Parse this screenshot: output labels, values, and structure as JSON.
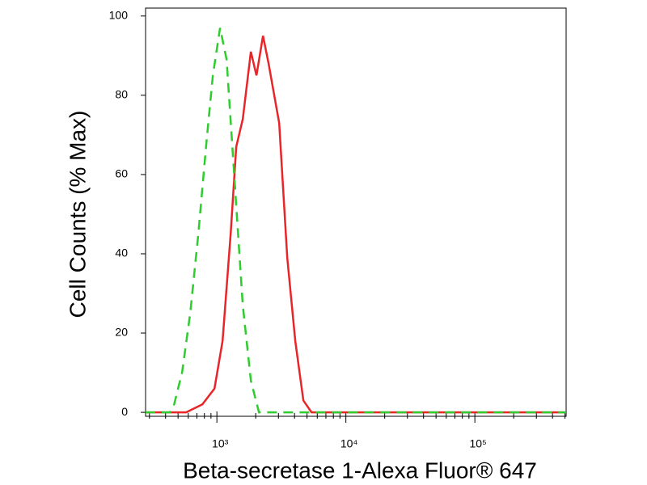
{
  "chart_data": {
    "type": "line",
    "xlabel": "Beta-secretase 1-Alexa Fluor® 647",
    "ylabel": "Cell Counts (% Max)",
    "log_x": true,
    "xlim": [
      280,
      510000
    ],
    "ylim": [
      -1,
      102
    ],
    "xticks": [
      {
        "value": 1000,
        "label": "10³"
      },
      {
        "value": 10000,
        "label": "10⁴"
      },
      {
        "value": 100000,
        "label": "10⁵"
      }
    ],
    "xminor_ticks": [
      300,
      400,
      500,
      600,
      700,
      800,
      900,
      2000,
      3000,
      4000,
      5000,
      6000,
      7000,
      8000,
      9000,
      20000,
      30000,
      40000,
      50000,
      60000,
      70000,
      80000,
      90000,
      200000,
      300000,
      400000,
      500000
    ],
    "yticks": [
      0,
      20,
      40,
      60,
      80,
      100
    ],
    "series": [
      {
        "color": "#e8262a",
        "dashed": false,
        "x": [
          280,
          578,
          771,
          958,
          1106,
          1278,
          1413,
          1588,
          1834,
          2028,
          2277,
          2518,
          3039,
          3511,
          4053,
          4684,
          5417,
          510000
        ],
        "values": [
          0,
          0,
          2,
          6,
          18,
          45,
          67,
          74,
          91,
          85,
          95,
          88,
          73,
          39,
          18,
          3,
          0,
          0
        ]
      },
      {
        "color": "#2ecc2e",
        "dashed": true,
        "x": [
          280,
          433,
          466,
          537,
          621,
          718,
          829,
          931,
          1059,
          1189,
          1374,
          1588,
          1834,
          2119,
          510000
        ],
        "values": [
          0,
          0,
          2,
          10,
          25,
          45,
          68,
          85,
          97,
          89,
          58,
          27,
          8,
          0,
          0
        ]
      }
    ]
  }
}
